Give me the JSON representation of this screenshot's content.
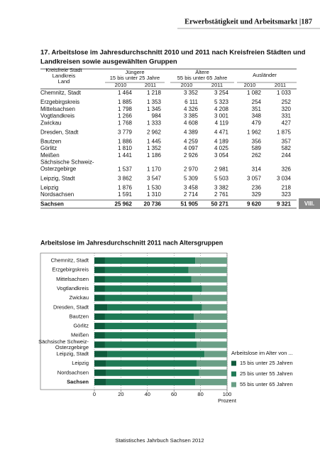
{
  "header": {
    "title": "Erwerbstätigkeit und Arbeitsmarkt |187"
  },
  "table": {
    "title_lines": [
      "17. Arbeitslose im Jahresdurchschnitt 2010 und 2011 nach Kreisfreien Städten und",
      "Landkreisen sowie ausgewählten Gruppen"
    ],
    "col_label": "Kreisfreie Stadt\nLandkreis\nLand",
    "groups_header": [
      "Jüngere\n15 bis unter 25 Jahre",
      "Ältere\n55 bis unter 65 Jahre",
      "Ausländer"
    ],
    "years": [
      "2010",
      "2011",
      "2010",
      "2011",
      "2010",
      "2011"
    ],
    "groups": [
      [
        {
          "label": "Chemnitz, Stadt",
          "values": [
            "1 464",
            "1 218",
            "3 352",
            "3 254",
            "1 082",
            "1 033"
          ]
        }
      ],
      [
        {
          "label": "Erzgebirgskreis",
          "values": [
            "1 885",
            "1 353",
            "6 111",
            "5 323",
            "254",
            "252"
          ]
        },
        {
          "label": "Mittelsachsen",
          "values": [
            "1 798",
            "1 345",
            "4 326",
            "4 208",
            "351",
            "320"
          ]
        },
        {
          "label": "Vogtlandkreis",
          "values": [
            "1 266",
            "984",
            "3 385",
            "3 001",
            "348",
            "331"
          ]
        },
        {
          "label": "Zwickau",
          "values": [
            "1 768",
            "1 333",
            "4 608",
            "4 119",
            "479",
            "427"
          ]
        }
      ],
      [
        {
          "label": "Dresden, Stadt",
          "values": [
            "3 779",
            "2 962",
            "4 389",
            "4 471",
            "1 962",
            "1 875"
          ]
        }
      ],
      [
        {
          "label": "Bautzen",
          "values": [
            "1 886",
            "1 445",
            "4 259",
            "4 189",
            "356",
            "357"
          ]
        },
        {
          "label": "Görlitz",
          "values": [
            "1 810",
            "1 352",
            "4 097",
            "4 025",
            "589",
            "582"
          ]
        },
        {
          "label": "Meißen",
          "values": [
            "1 441",
            "1 186",
            "2 926",
            "3 054",
            "262",
            "244"
          ]
        },
        {
          "label": "Sächsische Schweiz-\nOsterzgebirge",
          "values": [
            "1 537",
            "1 170",
            "2 970",
            "2 981",
            "314",
            "326"
          ]
        }
      ],
      [
        {
          "label": "Leipzig, Stadt",
          "values": [
            "3 862",
            "3 547",
            "5 309",
            "5 503",
            "3 057",
            "3 034"
          ]
        }
      ],
      [
        {
          "label": "Leipzig",
          "values": [
            "1 876",
            "1 530",
            "3 458",
            "3 382",
            "236",
            "218"
          ]
        },
        {
          "label": "Nordsachsen",
          "values": [
            "1 591",
            "1 310",
            "2 714",
            "2 761",
            "329",
            "323"
          ]
        }
      ],
      [
        {
          "label": "Sachsen",
          "values": [
            "25 962",
            "20 736",
            "51 905",
            "50 271",
            "9 620",
            "9 321"
          ]
        }
      ]
    ]
  },
  "side_tab": "VIII.",
  "chart_data": {
    "type": "bar",
    "orientation": "horizontal",
    "stacked": true,
    "title": "Arbeitslose im Jahresdurchschnitt 2011 nach Altersgruppen",
    "categories": [
      "Chemnitz, Stadt",
      "Erzgebirgskreis",
      "Mittelsachsen",
      "Vogtlandkreis",
      "Zwickau",
      "Dresden, Stadt",
      "Bautzen",
      "Görlitz",
      "Meißen",
      "Sächsische Schweiz-\nOsterzgebirge",
      "Leipzig, Stadt",
      "Leipzig",
      "Nordsachsen",
      "Sachsen"
    ],
    "series": [
      {
        "name": "15 bis unter 25 Jahren",
        "color": "#0f5a3c",
        "values": [
          8,
          8,
          8,
          8,
          8,
          10,
          8,
          8,
          8,
          8,
          10,
          9,
          9,
          9
        ]
      },
      {
        "name": "25 bis unter 55 Jahren",
        "color": "#1f7a55",
        "values": [
          68,
          63,
          65,
          73,
          66,
          71,
          67,
          69,
          68,
          69,
          73,
          68,
          70,
          67
        ]
      },
      {
        "name": "55 bis unter 65 Jahren",
        "color": "#6a9f86",
        "values": [
          24,
          29,
          27,
          19,
          26,
          19,
          25,
          23,
          24,
          23,
          17,
          23,
          21,
          24
        ]
      }
    ],
    "xlim": [
      0,
      100
    ],
    "xticks": [
      0,
      20,
      40,
      60,
      80,
      100
    ],
    "x_label": "Prozent",
    "grid": true,
    "legend_title": "Arbeitslose im Alter von ..."
  },
  "footer": "Statistisches Jahrbuch Sachsen 2012"
}
